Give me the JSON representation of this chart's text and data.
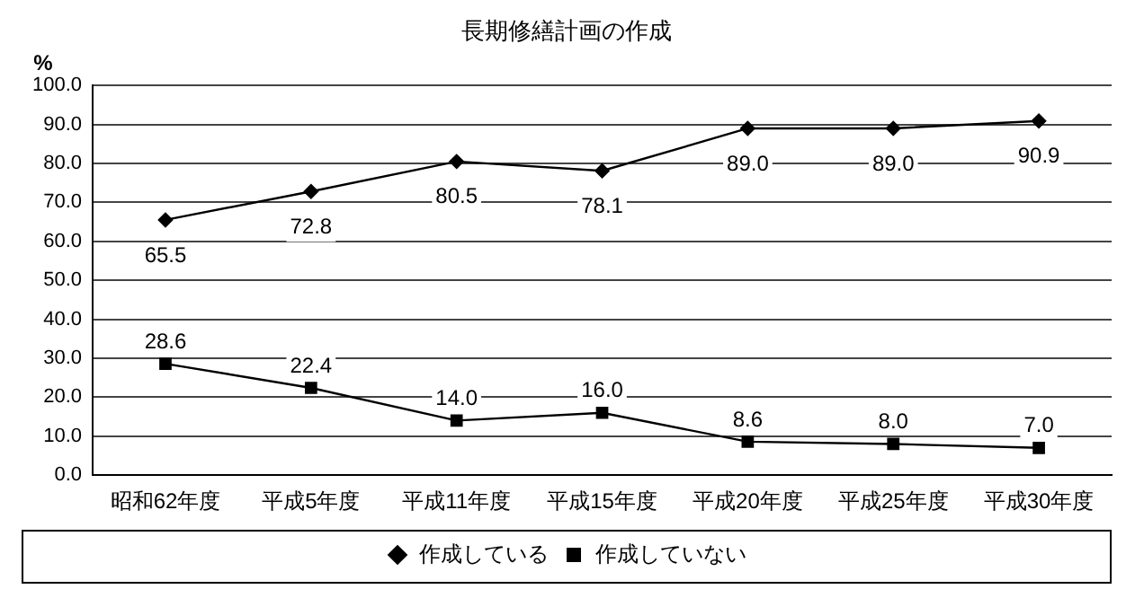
{
  "chart_data": {
    "type": "line",
    "title": "長期修繕計画の作成",
    "ylabel": "%",
    "categories": [
      "昭和62年度",
      "平成5年度",
      "平成11年度",
      "平成15年度",
      "平成20年度",
      "平成25年度",
      "平成30年度"
    ],
    "series": [
      {
        "name": "作成している",
        "color": "#000000",
        "marker": "diamond",
        "values": [
          65.5,
          72.8,
          80.5,
          78.1,
          89.0,
          89.0,
          90.9
        ],
        "value_labels": [
          "65.5",
          "72.8",
          "80.5",
          "78.1",
          "89.0",
          "89.0",
          "90.9"
        ]
      },
      {
        "name": "作成していない",
        "color": "#000000",
        "marker": "square",
        "values": [
          28.6,
          22.4,
          14.0,
          16.0,
          8.6,
          8.0,
          7.0
        ],
        "value_labels": [
          "28.6",
          "22.4",
          "14.0",
          "16.0",
          "8.6",
          "8.0",
          "7.0"
        ]
      }
    ],
    "ylim": [
      0,
      100
    ],
    "yticks": [
      {
        "value": 0,
        "label": "0.0"
      },
      {
        "value": 10,
        "label": "10.0"
      },
      {
        "value": 20,
        "label": "20.0"
      },
      {
        "value": 30,
        "label": "30.0"
      },
      {
        "value": 40,
        "label": "40.0"
      },
      {
        "value": 50,
        "label": "50.0"
      },
      {
        "value": 60,
        "label": "60.0"
      },
      {
        "value": 70,
        "label": "70.0"
      },
      {
        "value": 80,
        "label": "80.0"
      },
      {
        "value": 90,
        "label": "90.0"
      },
      {
        "value": 100,
        "label": "100.0"
      }
    ],
    "grid": "y",
    "legend": "bottom",
    "line_style": "solid"
  }
}
